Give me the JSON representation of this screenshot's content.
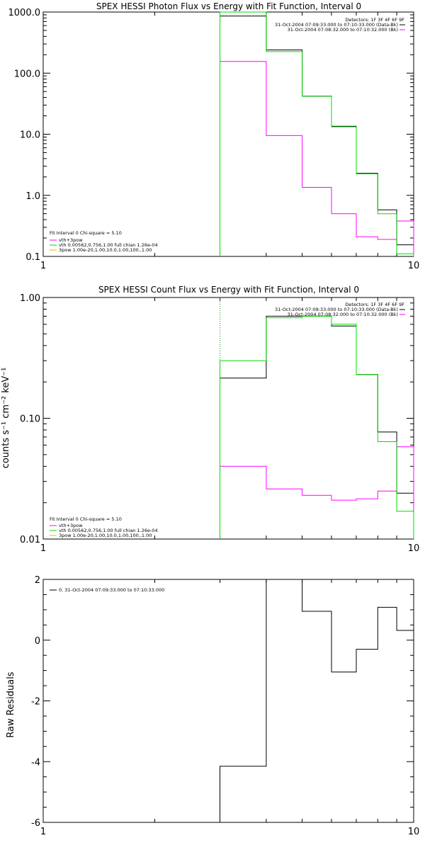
{
  "colors": {
    "axis": "#000000",
    "data": "#000000",
    "model": "#00dd00",
    "background": "#ff00ff",
    "marker": "#00aa00"
  },
  "chart_data": [
    {
      "id": "photon",
      "type": "line",
      "step": true,
      "title": "SPEX HESSI Photon Flux vs Energy with Fit Function, Interval 0",
      "xlabel": "",
      "ylabel": "",
      "xscale": "log",
      "yscale": "log",
      "xlim": [
        1,
        10
      ],
      "ylim": [
        0.1,
        1000
      ],
      "x_ticks": [
        {
          "v": 1,
          "t": "1"
        },
        {
          "v": 10,
          "t": "10"
        }
      ],
      "y_ticks": [
        {
          "v": 0.1,
          "t": "0.1"
        },
        {
          "v": 1,
          "t": "1.0"
        },
        {
          "v": 10,
          "t": "10.0"
        },
        {
          "v": 100,
          "t": "100.0"
        },
        {
          "v": 1000,
          "t": "1000.0"
        }
      ],
      "marker_x": 3.0,
      "edges": [
        3.0,
        4.0,
        5.0,
        6.0,
        7.0,
        8.0,
        9.0,
        10.0
      ],
      "series": [
        {
          "name": "31-Oct-2004 07:09:33.000 to 07:10:33.000 (Data-Bk)",
          "color": "#000000",
          "values": [
            860,
            240,
            42,
            13.5,
            2.3,
            0.58,
            0.155
          ]
        },
        {
          "name": "31-Oct-2004 07:08:32.000 to 07:10:32.000 (Bk)",
          "color": "#ff00ff",
          "values": [
            155,
            9.5,
            1.35,
            0.5,
            0.21,
            0.19,
            0.38
          ]
        },
        {
          "name": "vth+3pow",
          "color": "#00dd00",
          "values": [
            1000,
            225,
            42,
            13.2,
            2.25,
            0.5,
            0.11
          ]
        }
      ],
      "legend_top": [
        "Detectors: 1F 3F 4F 6F 9F",
        "31-Oct-2004 07:09:33.000 to 07:10:33.000 (Data-Bk)",
        "31-Oct-2004 07:08:32.000 to 07:10:32.000 (Bk)"
      ],
      "legend_bottom": [
        "Fit Interval 0   Chi-square = 5.10",
        "vth+3pow",
        "vth 0.00562,0.756,1.00   full chian 1.26e-04",
        "3pow 1.00e-20,1.00,10.0,1.00,100.,1.00"
      ]
    },
    {
      "id": "count",
      "type": "line",
      "step": true,
      "title": "SPEX HESSI Count Flux vs Energy with Fit Function, Interval 0",
      "xlabel": "",
      "ylabel": "counts s⁻¹ cm⁻² keV⁻¹",
      "xscale": "log",
      "yscale": "log",
      "xlim": [
        1,
        10
      ],
      "ylim": [
        0.01,
        1
      ],
      "x_ticks": [
        {
          "v": 1,
          "t": "1"
        },
        {
          "v": 10,
          "t": "10"
        }
      ],
      "y_ticks": [
        {
          "v": 0.01,
          "t": "0.01"
        },
        {
          "v": 0.1,
          "t": "0.10"
        },
        {
          "v": 1,
          "t": "1.00"
        }
      ],
      "marker_x": 3.0,
      "edges": [
        3.0,
        4.0,
        5.0,
        6.0,
        7.0,
        8.0,
        9.0,
        10.0
      ],
      "series": [
        {
          "name": "31-Oct-2004 07:09:33.000 to 07:10:33.000 (Data-Bk)",
          "color": "#000000",
          "values": [
            0.215,
            0.7,
            0.7,
            0.58,
            0.23,
            0.077,
            0.024
          ]
        },
        {
          "name": "31-Oct-2004 07:08:32.000 to 07:10:32.000 (Bk)",
          "color": "#ff00ff",
          "values": [
            0.04,
            0.026,
            0.023,
            0.021,
            0.0215,
            0.025,
            0.058
          ]
        },
        {
          "name": "vth+3pow",
          "color": "#00dd00",
          "values": [
            0.3,
            0.68,
            0.7,
            0.6,
            0.23,
            0.064,
            0.017
          ]
        }
      ],
      "legend_top": [
        "Detectors: 1F 3F 4F 6F 9F",
        "31-Oct-2004 07:09:33.000 to 07:10:33.000 (Data-Bk)",
        "31-Oct-2004 07:08:32.000 to 07:10:32.000 (Bk)"
      ],
      "legend_bottom": [
        "Fit Interval 0   Chi-square = 5.10",
        "vth+3pow",
        "vth 0.00562,0.756,1.00   full chian 1.26e-04",
        "3pow 1.00e-20,1.00,10.0,1.00,100.,1.00"
      ]
    },
    {
      "id": "resid",
      "type": "line",
      "step": true,
      "title": "",
      "xlabel": "",
      "ylabel": "Raw Residuals",
      "xscale": "log",
      "yscale": "linear",
      "xlim": [
        1,
        10
      ],
      "ylim": [
        -6,
        2
      ],
      "x_ticks": [
        {
          "v": 1,
          "t": "1"
        },
        {
          "v": 10,
          "t": "10"
        }
      ],
      "y_ticks": [
        {
          "v": -6,
          "t": "-6"
        },
        {
          "v": -4,
          "t": "-4"
        },
        {
          "v": -2,
          "t": "-2"
        },
        {
          "v": 0,
          "t": "0"
        },
        {
          "v": 2,
          "t": "2"
        }
      ],
      "edges": [
        3.0,
        4.0,
        5.0,
        6.0,
        7.0,
        8.0,
        9.0,
        10.0
      ],
      "series": [
        {
          "name": "0. 31-Oct-2004 07:09:33.000 to 07:10:33.000",
          "color": "#000000",
          "values": [
            -4.15,
            2.0,
            0.95,
            -1.05,
            -0.3,
            1.08,
            0.32
          ]
        }
      ],
      "legend_top": [
        "0. 31-Oct-2004 07:09:33.000 to 07:10:33.000"
      ]
    }
  ]
}
